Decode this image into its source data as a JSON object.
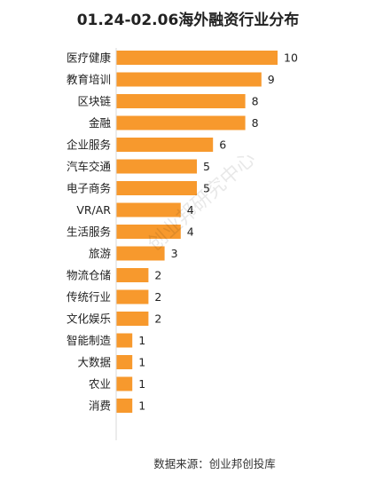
{
  "chart_data": {
    "type": "bar",
    "orientation": "horizontal",
    "title": "01.24-02.06海外融资行业分布",
    "categories": [
      "医疗健康",
      "教育培训",
      "区块链",
      "金融",
      "企业服务",
      "汽车交通",
      "电子商务",
      "VR/AR",
      "生活服务",
      "旅游",
      "物流仓储",
      "传统行业",
      "文化娱乐",
      "智能制造",
      "大数据",
      "农业",
      "消费"
    ],
    "values": [
      10,
      9,
      8,
      8,
      6,
      5,
      5,
      4,
      4,
      3,
      2,
      2,
      2,
      1,
      1,
      1,
      1
    ],
    "xlim": [
      0,
      10
    ],
    "bar_color": "#F7992D",
    "axis_color": "#D9D9D9",
    "grid": false,
    "legend": "none"
  },
  "watermark": "创业邦研究中心",
  "source": "数据来源：创业邦创投库"
}
